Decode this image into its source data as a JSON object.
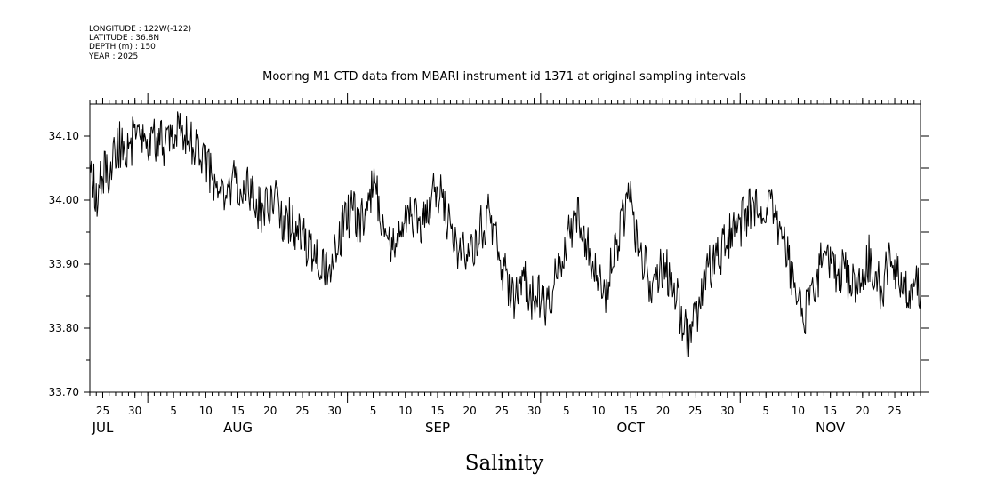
{
  "metadata": {
    "longitude": "LONGITUDE : 122W(-122)",
    "latitude": "LATITUDE : 36.8N",
    "depth": "DEPTH (m) : 150",
    "year": "YEAR : 2025"
  },
  "chart_data": {
    "type": "line",
    "title": "Mooring M1 CTD data from MBARI instrument id 1371 at original sampling intervals",
    "xlabel": "Salinity",
    "ylabel": "",
    "ylim": [
      33.7,
      34.15
    ],
    "xlim": [
      "2025-07-23",
      "2025-11-29"
    ],
    "y_ticks": [
      "34.10",
      "34.00",
      "33.90",
      "33.80",
      "33.70"
    ],
    "y_tick_values": [
      34.1,
      34.0,
      33.9,
      33.8,
      33.7
    ],
    "x_day_ticks": [
      {
        "date": "2025-07-25",
        "label": "25"
      },
      {
        "date": "2025-07-30",
        "label": "30"
      },
      {
        "date": "2025-08-05",
        "label": "5"
      },
      {
        "date": "2025-08-10",
        "label": "10"
      },
      {
        "date": "2025-08-15",
        "label": "15"
      },
      {
        "date": "2025-08-20",
        "label": "20"
      },
      {
        "date": "2025-08-25",
        "label": "25"
      },
      {
        "date": "2025-08-30",
        "label": "30"
      },
      {
        "date": "2025-09-05",
        "label": "5"
      },
      {
        "date": "2025-09-10",
        "label": "10"
      },
      {
        "date": "2025-09-15",
        "label": "15"
      },
      {
        "date": "2025-09-20",
        "label": "20"
      },
      {
        "date": "2025-09-25",
        "label": "25"
      },
      {
        "date": "2025-09-30",
        "label": "30"
      },
      {
        "date": "2025-10-05",
        "label": "5"
      },
      {
        "date": "2025-10-10",
        "label": "10"
      },
      {
        "date": "2025-10-15",
        "label": "15"
      },
      {
        "date": "2025-10-20",
        "label": "20"
      },
      {
        "date": "2025-10-25",
        "label": "25"
      },
      {
        "date": "2025-10-30",
        "label": "30"
      },
      {
        "date": "2025-11-05",
        "label": "5"
      },
      {
        "date": "2025-11-10",
        "label": "10"
      },
      {
        "date": "2025-11-15",
        "label": "15"
      },
      {
        "date": "2025-11-20",
        "label": "20"
      },
      {
        "date": "2025-11-25",
        "label": "25"
      }
    ],
    "x_month_labels": [
      {
        "date": "2025-07-25",
        "label": "JUL"
      },
      {
        "date": "2025-08-15",
        "label": "AUG"
      },
      {
        "date": "2025-09-15",
        "label": "SEP"
      },
      {
        "date": "2025-10-15",
        "label": "OCT"
      },
      {
        "date": "2025-11-15",
        "label": "NOV"
      }
    ],
    "month_starts": [
      "2025-08-01",
      "2025-09-01",
      "2025-10-01",
      "2025-11-01"
    ],
    "grid": false,
    "series": [
      {
        "color": "#000000",
        "x": [
          "2025-07-23",
          "2025-07-24",
          "2025-07-25",
          "2025-07-26",
          "2025-07-27",
          "2025-07-28",
          "2025-07-29",
          "2025-07-30",
          "2025-07-31",
          "2025-08-01",
          "2025-08-02",
          "2025-08-03",
          "2025-08-04",
          "2025-08-05",
          "2025-08-06",
          "2025-08-07",
          "2025-08-08",
          "2025-08-09",
          "2025-08-10",
          "2025-08-11",
          "2025-08-12",
          "2025-08-13",
          "2025-08-14",
          "2025-08-15",
          "2025-08-16",
          "2025-08-17",
          "2025-08-18",
          "2025-08-19",
          "2025-08-20",
          "2025-08-21",
          "2025-08-22",
          "2025-08-23",
          "2025-08-24",
          "2025-08-25",
          "2025-08-26",
          "2025-08-27",
          "2025-08-28",
          "2025-08-29",
          "2025-08-30",
          "2025-08-31",
          "2025-09-01",
          "2025-09-02",
          "2025-09-03",
          "2025-09-04",
          "2025-09-05",
          "2025-09-06",
          "2025-09-07",
          "2025-09-08",
          "2025-09-09",
          "2025-09-10",
          "2025-09-11",
          "2025-09-12",
          "2025-09-13",
          "2025-09-14",
          "2025-09-15",
          "2025-09-16",
          "2025-09-17",
          "2025-09-18",
          "2025-09-19",
          "2025-09-20",
          "2025-09-21",
          "2025-09-22",
          "2025-09-23",
          "2025-09-24",
          "2025-09-25",
          "2025-09-26",
          "2025-09-27",
          "2025-09-28",
          "2025-09-29",
          "2025-09-30",
          "2025-10-01",
          "2025-10-02",
          "2025-10-03",
          "2025-10-04",
          "2025-10-05",
          "2025-10-06",
          "2025-10-07",
          "2025-10-08",
          "2025-10-09",
          "2025-10-10",
          "2025-10-11",
          "2025-10-12",
          "2025-10-13",
          "2025-10-14",
          "2025-10-15",
          "2025-10-16",
          "2025-10-17",
          "2025-10-18",
          "2025-10-19",
          "2025-10-20",
          "2025-10-21",
          "2025-10-22",
          "2025-10-23",
          "2025-10-24",
          "2025-10-25",
          "2025-10-26",
          "2025-10-27",
          "2025-10-28",
          "2025-10-29",
          "2025-10-30",
          "2025-10-31",
          "2025-11-01",
          "2025-11-02",
          "2025-11-03",
          "2025-11-04",
          "2025-11-05",
          "2025-11-06",
          "2025-11-07",
          "2025-11-08",
          "2025-11-09",
          "2025-11-10",
          "2025-11-11",
          "2025-11-12",
          "2025-11-13",
          "2025-11-14",
          "2025-11-15",
          "2025-11-16",
          "2025-11-17",
          "2025-11-18",
          "2025-11-19",
          "2025-11-20",
          "2025-11-21",
          "2025-11-22",
          "2025-11-23",
          "2025-11-24",
          "2025-11-25",
          "2025-11-26",
          "2025-11-27",
          "2025-11-28",
          "2025-11-29"
        ],
        "values": [
          34.06,
          34.0,
          34.04,
          34.05,
          34.08,
          34.09,
          34.08,
          34.1,
          34.09,
          34.08,
          34.1,
          34.09,
          34.09,
          34.11,
          34.1,
          34.11,
          34.09,
          34.08,
          34.06,
          34.03,
          34.0,
          34.01,
          34.03,
          34.02,
          34.03,
          34.01,
          33.99,
          33.98,
          33.99,
          34.0,
          33.97,
          33.97,
          33.95,
          33.94,
          33.92,
          33.9,
          33.91,
          33.89,
          33.91,
          33.95,
          33.97,
          33.99,
          33.96,
          34.0,
          34.02,
          33.99,
          33.96,
          33.93,
          33.96,
          33.97,
          33.98,
          33.96,
          33.98,
          34.0,
          34.02,
          33.99,
          33.96,
          33.93,
          33.92,
          33.92,
          33.94,
          33.96,
          33.98,
          33.94,
          33.9,
          33.86,
          33.84,
          33.88,
          33.86,
          33.84,
          33.85,
          33.83,
          33.87,
          33.91,
          33.93,
          33.96,
          33.98,
          33.94,
          33.9,
          33.87,
          33.85,
          33.9,
          33.94,
          33.98,
          34.0,
          33.94,
          33.9,
          33.87,
          33.89,
          33.9,
          33.88,
          33.86,
          33.8,
          33.79,
          33.81,
          33.85,
          33.89,
          33.91,
          33.92,
          33.94,
          33.96,
          33.96,
          33.98,
          33.99,
          34.0,
          33.99,
          33.98,
          33.96,
          33.93,
          33.88,
          33.83,
          33.82,
          33.85,
          33.88,
          33.92,
          33.9,
          33.88,
          33.9,
          33.86,
          33.87,
          33.89,
          33.91,
          33.88,
          33.86,
          33.9,
          33.89,
          33.87,
          33.86,
          33.88,
          33.85
        ]
      }
    ]
  }
}
